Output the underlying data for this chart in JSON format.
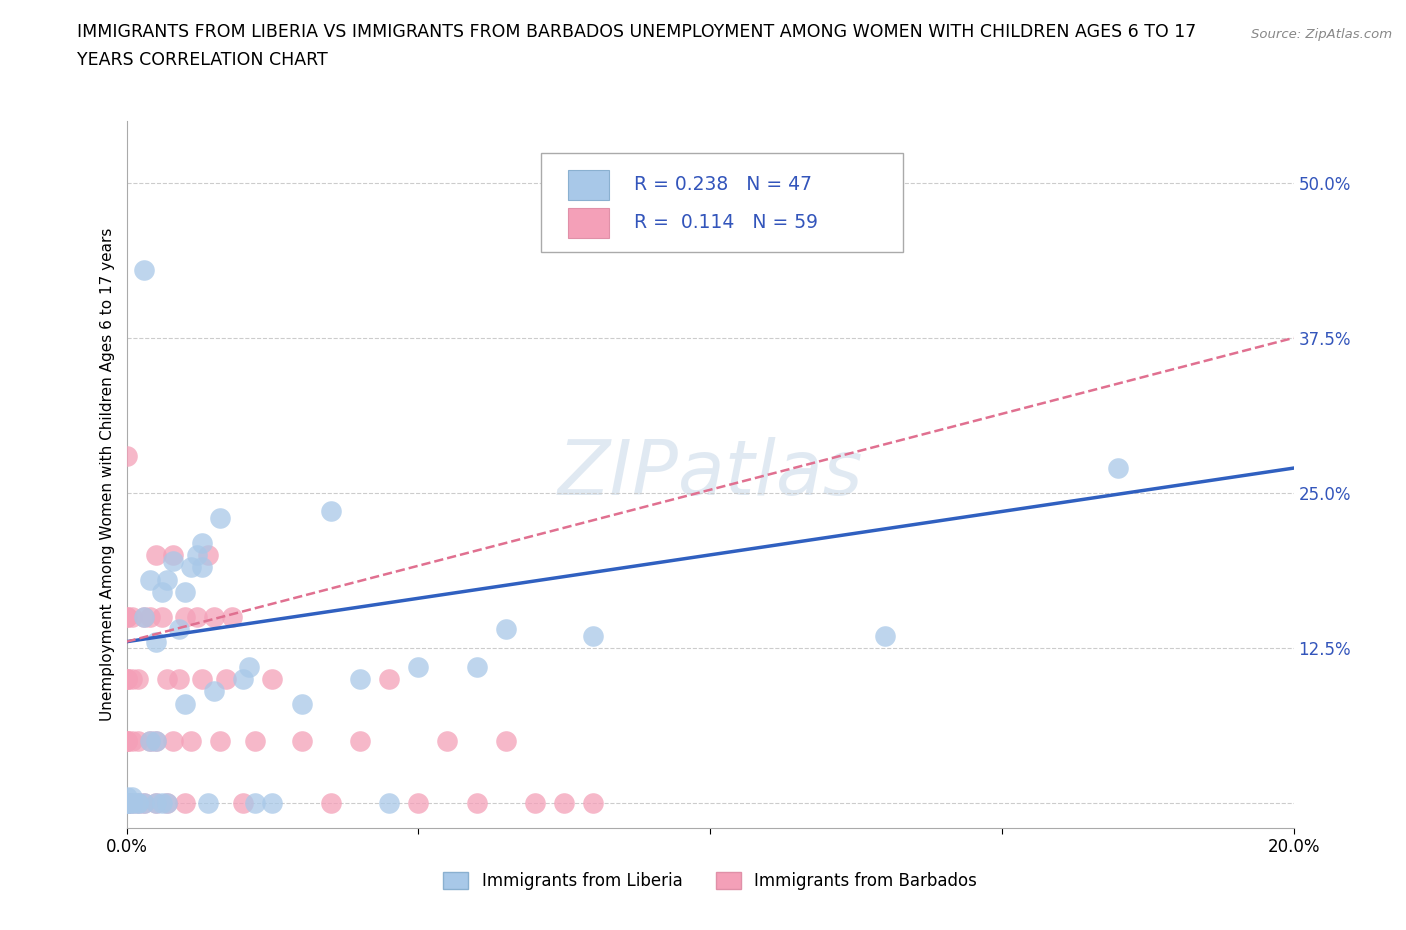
{
  "title_line1": "IMMIGRANTS FROM LIBERIA VS IMMIGRANTS FROM BARBADOS UNEMPLOYMENT AMONG WOMEN WITH CHILDREN AGES 6 TO 17",
  "title_line2": "YEARS CORRELATION CHART",
  "source": "Source: ZipAtlas.com",
  "ylabel": "Unemployment Among Women with Children Ages 6 to 17 years",
  "xlim": [
    0.0,
    0.2
  ],
  "ylim": [
    -0.02,
    0.55
  ],
  "liberia_R": 0.238,
  "liberia_N": 47,
  "barbados_R": 0.114,
  "barbados_N": 59,
  "liberia_color": "#a8c8e8",
  "barbados_color": "#f4a0b8",
  "liberia_line_color": "#3060c0",
  "barbados_line_color": "#e07090",
  "legend_label_liberia": "Immigrants from Liberia",
  "legend_label_barbados": "Immigrants from Barbados",
  "liberia_x": [
    0.0,
    0.0,
    0.0,
    0.001,
    0.001,
    0.002,
    0.003,
    0.003,
    0.004,
    0.004,
    0.005,
    0.005,
    0.005,
    0.006,
    0.006,
    0.007,
    0.007,
    0.008,
    0.009,
    0.01,
    0.01,
    0.011,
    0.012,
    0.013,
    0.013,
    0.014,
    0.015,
    0.016,
    0.02,
    0.021,
    0.022,
    0.025,
    0.03,
    0.035,
    0.04,
    0.045,
    0.05,
    0.06,
    0.065,
    0.08,
    0.13,
    0.17,
    0.0,
    0.0,
    0.001,
    0.002,
    0.003
  ],
  "liberia_y": [
    0.0,
    0.0,
    0.005,
    0.0,
    0.005,
    0.0,
    0.0,
    0.15,
    0.05,
    0.18,
    0.0,
    0.05,
    0.13,
    0.0,
    0.17,
    0.0,
    0.18,
    0.195,
    0.14,
    0.08,
    0.17,
    0.19,
    0.2,
    0.19,
    0.21,
    0.0,
    0.09,
    0.23,
    0.1,
    0.11,
    0.0,
    0.0,
    0.08,
    0.235,
    0.1,
    0.0,
    0.11,
    0.11,
    0.14,
    0.135,
    0.135,
    0.27,
    0.0,
    0.0,
    0.0,
    0.0,
    0.43
  ],
  "barbados_x": [
    0.0,
    0.0,
    0.0,
    0.0,
    0.0,
    0.0,
    0.0,
    0.0,
    0.0,
    0.0,
    0.0,
    0.0,
    0.0,
    0.0,
    0.001,
    0.001,
    0.001,
    0.001,
    0.002,
    0.002,
    0.002,
    0.003,
    0.003,
    0.004,
    0.004,
    0.005,
    0.005,
    0.005,
    0.006,
    0.007,
    0.007,
    0.008,
    0.008,
    0.009,
    0.01,
    0.01,
    0.011,
    0.012,
    0.013,
    0.014,
    0.015,
    0.016,
    0.017,
    0.018,
    0.02,
    0.022,
    0.025,
    0.03,
    0.035,
    0.04,
    0.045,
    0.05,
    0.055,
    0.06,
    0.065,
    0.07,
    0.075,
    0.08,
    0.0
  ],
  "barbados_y": [
    0.0,
    0.0,
    0.0,
    0.0,
    0.0,
    0.05,
    0.05,
    0.05,
    0.1,
    0.1,
    0.1,
    0.15,
    0.15,
    0.28,
    0.0,
    0.05,
    0.1,
    0.15,
    0.0,
    0.05,
    0.1,
    0.0,
    0.15,
    0.05,
    0.15,
    0.0,
    0.05,
    0.2,
    0.15,
    0.0,
    0.1,
    0.05,
    0.2,
    0.1,
    0.0,
    0.15,
    0.05,
    0.15,
    0.1,
    0.2,
    0.15,
    0.05,
    0.1,
    0.15,
    0.0,
    0.05,
    0.1,
    0.05,
    0.0,
    0.05,
    0.1,
    0.0,
    0.05,
    0.0,
    0.05,
    0.0,
    0.0,
    0.0,
    0.0
  ]
}
